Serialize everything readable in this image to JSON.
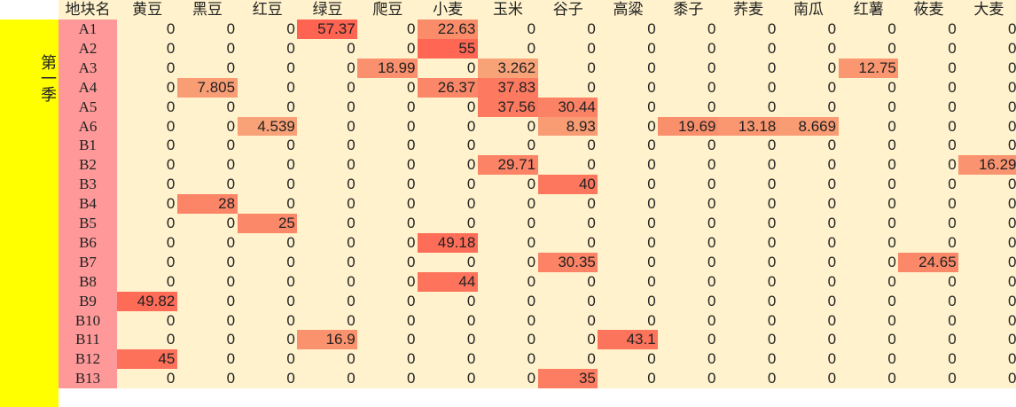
{
  "sheet": {
    "header": {
      "plot_label": "地块名",
      "crops": [
        "黄豆",
        "黑豆",
        "红豆",
        "绿豆",
        "爬豆",
        "小麦",
        "玉米",
        "谷子",
        "高粱",
        "黍子",
        "荞麦",
        "南瓜",
        "红薯",
        "莜麦",
        "大麦"
      ]
    },
    "season_label": "第一季",
    "rows": [
      {
        "plot": "A1",
        "values": [
          "0",
          "0",
          "0",
          "57.37",
          "0",
          "22.63",
          "0",
          "0",
          "0",
          "0",
          "0",
          "0",
          "0",
          "0",
          "0"
        ]
      },
      {
        "plot": "A2",
        "values": [
          "0",
          "0",
          "0",
          "0",
          "0",
          "55",
          "0",
          "0",
          "0",
          "0",
          "0",
          "0",
          "0",
          "0",
          "0"
        ]
      },
      {
        "plot": "A3",
        "values": [
          "0",
          "0",
          "0",
          "0",
          "18.99",
          "0",
          "3.262",
          "0",
          "0",
          "0",
          "0",
          "0",
          "12.75",
          "0",
          "0"
        ]
      },
      {
        "plot": "A4",
        "values": [
          "0",
          "7.805",
          "0",
          "0",
          "0",
          "26.37",
          "37.83",
          "0",
          "0",
          "0",
          "0",
          "0",
          "0",
          "0",
          "0"
        ]
      },
      {
        "plot": "A5",
        "values": [
          "0",
          "0",
          "0",
          "0",
          "0",
          "0",
          "37.56",
          "30.44",
          "0",
          "0",
          "0",
          "0",
          "0",
          "0",
          "0"
        ]
      },
      {
        "plot": "A6",
        "values": [
          "0",
          "0",
          "4.539",
          "0",
          "0",
          "0",
          "0",
          "8.93",
          "0",
          "19.69",
          "13.18",
          "8.669",
          "0",
          "0",
          "0"
        ]
      },
      {
        "plot": "B1",
        "values": [
          "0",
          "0",
          "0",
          "0",
          "0",
          "0",
          "0",
          "0",
          "0",
          "0",
          "0",
          "0",
          "0",
          "0",
          "0"
        ]
      },
      {
        "plot": "B2",
        "values": [
          "0",
          "0",
          "0",
          "0",
          "0",
          "0",
          "29.71",
          "0",
          "0",
          "0",
          "0",
          "0",
          "0",
          "0",
          "16.29"
        ]
      },
      {
        "plot": "B3",
        "values": [
          "0",
          "0",
          "0",
          "0",
          "0",
          "0",
          "0",
          "40",
          "0",
          "0",
          "0",
          "0",
          "0",
          "0",
          "0"
        ]
      },
      {
        "plot": "B4",
        "values": [
          "0",
          "28",
          "0",
          "0",
          "0",
          "0",
          "0",
          "0",
          "0",
          "0",
          "0",
          "0",
          "0",
          "0",
          "0"
        ]
      },
      {
        "plot": "B5",
        "values": [
          "0",
          "0",
          "25",
          "0",
          "0",
          "0",
          "0",
          "0",
          "0",
          "0",
          "0",
          "0",
          "0",
          "0",
          "0"
        ]
      },
      {
        "plot": "B6",
        "values": [
          "0",
          "0",
          "0",
          "0",
          "0",
          "49.18",
          "0",
          "0",
          "0",
          "0",
          "0",
          "0",
          "0",
          "0",
          "0"
        ]
      },
      {
        "plot": "B7",
        "values": [
          "0",
          "0",
          "0",
          "0",
          "0",
          "0",
          "0",
          "30.35",
          "0",
          "0",
          "0",
          "0",
          "0",
          "24.65",
          "0"
        ]
      },
      {
        "plot": "B8",
        "values": [
          "0",
          "0",
          "0",
          "0",
          "0",
          "44",
          "0",
          "0",
          "0",
          "0",
          "0",
          "0",
          "0",
          "0",
          "0"
        ]
      },
      {
        "plot": "B9",
        "values": [
          "49.82",
          "0",
          "0",
          "0",
          "0",
          "0",
          "0",
          "0",
          "0",
          "0",
          "0",
          "0",
          "0",
          "0",
          "0"
        ]
      },
      {
        "plot": "B10",
        "values": [
          "0",
          "0",
          "0",
          "0",
          "0",
          "0",
          "0",
          "0",
          "0",
          "0",
          "0",
          "0",
          "0",
          "0",
          "0"
        ]
      },
      {
        "plot": "B11",
        "values": [
          "0",
          "0",
          "0",
          "16.9",
          "0",
          "0",
          "0",
          "0",
          "43.1",
          "0",
          "0",
          "0",
          "0",
          "0",
          "0"
        ]
      },
      {
        "plot": "B12",
        "values": [
          "45",
          "0",
          "0",
          "0",
          "0",
          "0",
          "0",
          "0",
          "0",
          "0",
          "0",
          "0",
          "0",
          "0",
          "0"
        ]
      },
      {
        "plot": "B13",
        "values": [
          "0",
          "0",
          "0",
          "0",
          "0",
          "0",
          "0",
          "35",
          "0",
          "0",
          "0",
          "0",
          "0",
          "0",
          "0"
        ]
      }
    ],
    "colors": {
      "zero_fill": "#fff2cc",
      "low_fill": "#f8a67a",
      "high_fill": "#ff6352",
      "header_fill": "#fff2cc",
      "plot_fill": "#ff9999",
      "season_fill": "#ffff00"
    },
    "max_value": 57.37
  }
}
